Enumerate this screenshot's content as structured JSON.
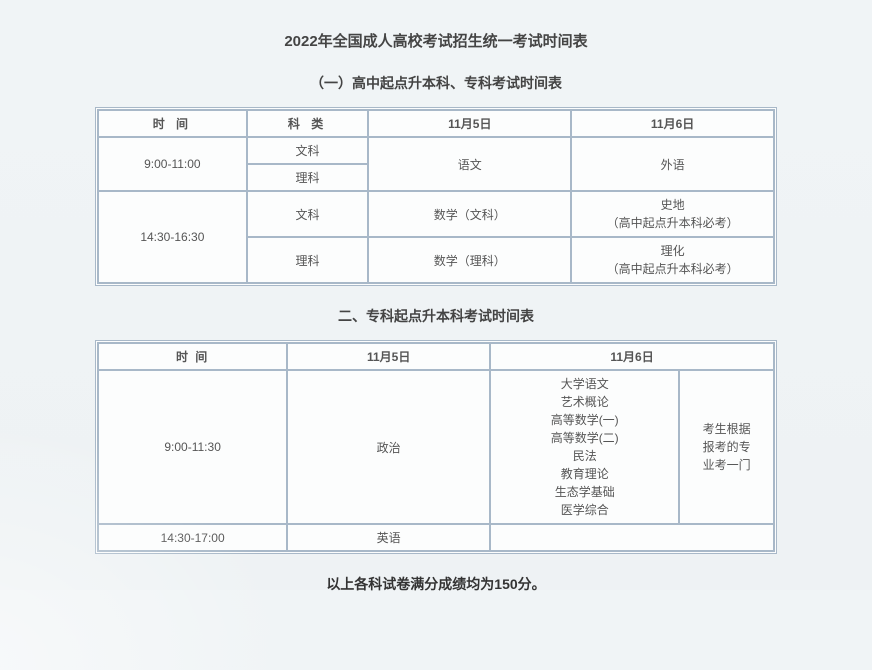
{
  "main_title": "2022年全国成人高校考试招生统一考试时间表",
  "section1": {
    "title": "（一）高中起点升本科、专科考试时间表",
    "headers": [
      "时 间",
      "科 类",
      "11月5日",
      "11月6日"
    ],
    "header_letterspacing": [
      4,
      4,
      0,
      0
    ],
    "row1": {
      "time": "9:00-11:00",
      "subject_a": "文科",
      "subject_b": "理科",
      "day1": "语文",
      "day2": "外语"
    },
    "row2": {
      "time": "14:30-16:30",
      "subject_a": "文科",
      "subject_b": "理科",
      "day1_a": "数学（文科）",
      "day1_b": "数学（理科）",
      "day2_a_line1": "史地",
      "day2_a_line2": "（高中起点升本科必考）",
      "day2_b_line1": "理化",
      "day2_b_line2": "（高中起点升本科必考）"
    }
  },
  "section2": {
    "title": "二、专科起点升本科考试时间表",
    "headers": [
      "时 间",
      "11月5日",
      "11月6日"
    ],
    "row1": {
      "time": "9:00-11:30",
      "day1": "政治",
      "day2_options": "大学语文\n艺术概论\n高等数学(一)\n高等数学(二)\n民法\n教育理论\n生态学基础\n医学综合",
      "day2_note": "考生根据\n报考的专\n业考一门"
    },
    "row2": {
      "time": "14:30-17:00",
      "day1": "英语"
    }
  },
  "footer": "以上各科试卷满分成绩均为150分。",
  "colors": {
    "border": "#a8b8c8",
    "text": "#555",
    "heading": "#444",
    "bg_start": "#f0f4f6",
    "table_bg": "#fcfdfd"
  },
  "typography": {
    "title_fontsize": 15,
    "subtitle_fontsize": 14,
    "cell_fontsize": 12,
    "footer_fontsize": 14
  }
}
